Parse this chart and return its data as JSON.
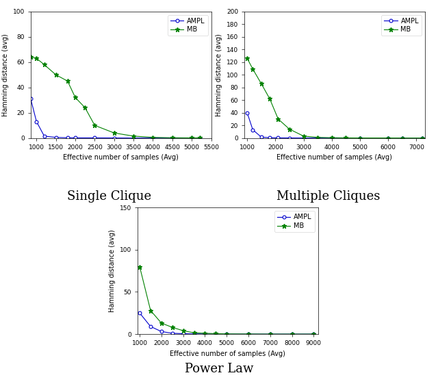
{
  "subplot1": {
    "title": "Single Clique",
    "xlabel": "Effective number of samples (Avg)",
    "ylabel": "Hamming distance (avg)",
    "xlim": [
      850,
      5500
    ],
    "ylim": [
      0,
      100
    ],
    "yticks": [
      0,
      20,
      40,
      60,
      80,
      100
    ],
    "xticks": [
      1000,
      1500,
      2000,
      2500,
      3000,
      3500,
      4000,
      4500,
      5000,
      5500
    ],
    "ampl_x": [
      850,
      1000,
      1200,
      1500,
      1800,
      2000,
      2500,
      3000,
      3500,
      4000,
      4500,
      5000,
      5200
    ],
    "ampl_y": [
      31,
      13,
      1.5,
      0.5,
      0.2,
      0.1,
      0.1,
      0.05,
      0.0,
      0.0,
      0.0,
      0.0,
      0.0
    ],
    "mb_x": [
      850,
      1000,
      1200,
      1500,
      1800,
      2000,
      2250,
      2500,
      3000,
      3500,
      4000,
      4500,
      5000,
      5200
    ],
    "mb_y": [
      64,
      63,
      58,
      50,
      45,
      32,
      24,
      10,
      4,
      1.5,
      0.5,
      0.2,
      0.1,
      0.1
    ]
  },
  "subplot2": {
    "title": "Multiple Cliques",
    "xlabel": "Effective number of samples (Avg)",
    "ylabel": "Hamming distance (avg)",
    "xlim": [
      900,
      7300
    ],
    "ylim": [
      0,
      200
    ],
    "yticks": [
      0,
      20,
      40,
      60,
      80,
      100,
      120,
      140,
      160,
      180,
      200
    ],
    "xticks": [
      1000,
      2000,
      3000,
      4000,
      5000,
      6000,
      7000
    ],
    "ampl_x": [
      1000,
      1200,
      1500,
      1800,
      2100,
      2500,
      3000,
      3500,
      4000,
      4500,
      5000,
      6000,
      6500,
      7200
    ],
    "ampl_y": [
      40,
      13,
      1.5,
      0.5,
      0.2,
      0.1,
      0.05,
      0.0,
      0.0,
      0.0,
      0.0,
      0.0,
      0.0,
      0.0
    ],
    "mb_x": [
      1000,
      1200,
      1500,
      1800,
      2100,
      2500,
      3000,
      3500,
      4000,
      4500,
      5000,
      6000,
      6500,
      7200
    ],
    "mb_y": [
      126,
      109,
      86,
      62,
      30,
      14,
      3,
      1,
      0.5,
      0.2,
      0.1,
      0.1,
      0.0,
      0.0
    ]
  },
  "subplot3": {
    "title": "Power Law",
    "xlabel": "Effective number of samples (Avg)",
    "ylabel": "Hamming distance (avg)",
    "xlim": [
      900,
      9200
    ],
    "ylim": [
      0,
      150
    ],
    "yticks": [
      0,
      50,
      100,
      150
    ],
    "xticks": [
      1000,
      2000,
      3000,
      4000,
      5000,
      6000,
      7000,
      8000,
      9000
    ],
    "ampl_x": [
      1000,
      1500,
      2000,
      2500,
      3000,
      3500,
      4000,
      4500,
      5000,
      6000,
      7000,
      8000,
      9000
    ],
    "ampl_y": [
      25,
      9,
      3,
      1.0,
      0.5,
      0.2,
      0.1,
      0.0,
      0.0,
      0.0,
      0.0,
      0.0,
      0.0
    ],
    "mb_x": [
      1000,
      1500,
      2000,
      2500,
      3000,
      3500,
      4000,
      4500,
      5000,
      6000,
      7000,
      8000,
      9000
    ],
    "mb_y": [
      80,
      28,
      13,
      8,
      4,
      1.5,
      1.0,
      0.5,
      0.2,
      0.1,
      0.0,
      0.0,
      0.0
    ]
  },
  "ampl_color": "#0000cc",
  "mb_color": "#008000",
  "ampl_marker": "o",
  "mb_marker": "*",
  "linewidth": 0.8,
  "markersize_ampl": 3.5,
  "markersize_mb": 5,
  "bg_color": "#ffffff",
  "title1": "Single Clique",
  "title2": "Multiple Cliques",
  "title3": "Power Law",
  "title_fontsize": 13
}
